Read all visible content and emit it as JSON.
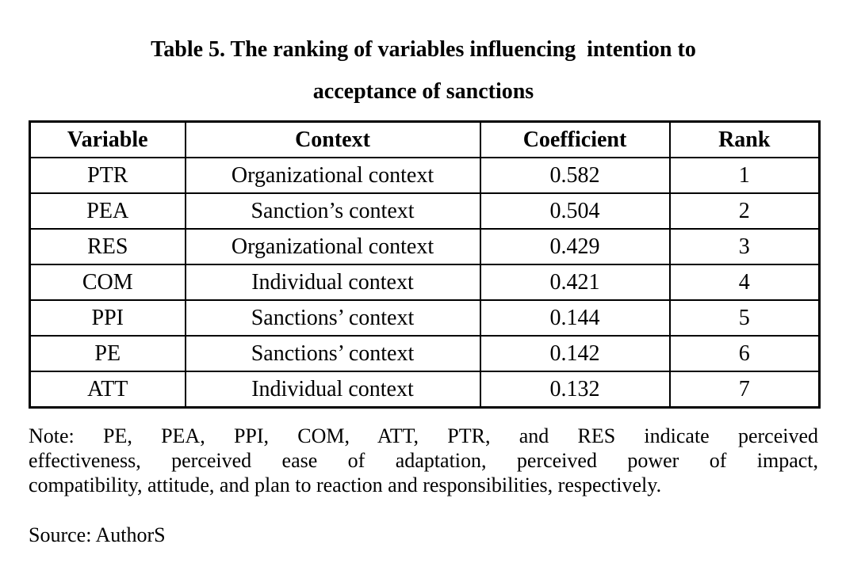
{
  "title": {
    "line1": "Table 5. The ranking of variables influencing  intention to",
    "line2": "acceptance of sanctions"
  },
  "table": {
    "headers": [
      "Variable",
      "Context",
      "Coefficient",
      "Rank"
    ],
    "rows": [
      {
        "variable": "PTR",
        "context": "Organizational context",
        "coefficient": "0.582",
        "rank": "1"
      },
      {
        "variable": "PEA",
        "context": "Sanction’s context",
        "coefficient": "0.504",
        "rank": "2"
      },
      {
        "variable": "RES",
        "context": "Organizational context",
        "coefficient": "0.429",
        "rank": "3"
      },
      {
        "variable": "COM",
        "context": "Individual context",
        "coefficient": "0.421",
        "rank": "4"
      },
      {
        "variable": "PPI",
        "context": "Sanctions’ context",
        "coefficient": "0.144",
        "rank": "5"
      },
      {
        "variable": "PE",
        "context": "Sanctions’ context",
        "coefficient": "0.142",
        "rank": "6"
      },
      {
        "variable": "ATT",
        "context": "Individual context",
        "coefficient": "0.132",
        "rank": "7"
      }
    ]
  },
  "note": {
    "full_text": "Note: PE, PEA, PPI, COM, ATT, PTR, and RES indicate perceived effectiveness, perceived ease of adaptation, perceived power of impact, compatibility, attitude, and plan to reaction and responsibilities, respectively.",
    "lines": [
      "Note: PE, PEA, PPI, COM, ATT, PTR, and RES indicate perceived",
      "effectiveness, perceived ease of adaptation, perceived power of impact,",
      "compatibility, attitude, and plan to reaction and responsibilities, respectively."
    ]
  },
  "source": "Source: AuthorS",
  "colors": {
    "text": "#000000",
    "background": "#ffffff",
    "border": "#000000"
  }
}
